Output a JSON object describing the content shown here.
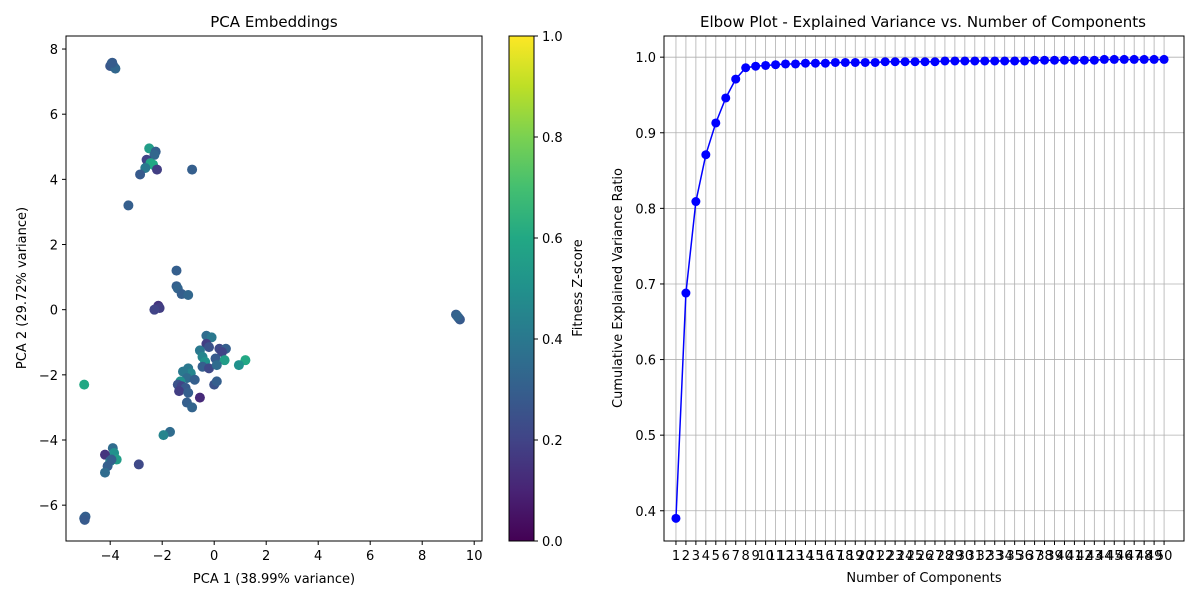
{
  "chart_data": [
    {
      "type": "scatter",
      "title": "PCA Embeddings",
      "xlabel": "PCA 1 (38.99% variance)",
      "ylabel": "PCA 2 (29.72% variance)",
      "xlim": [
        -5.7,
        10.3
      ],
      "ylim": [
        -7.1,
        8.4
      ],
      "xticks": [
        -4,
        -2,
        0,
        2,
        4,
        6,
        8,
        10
      ],
      "yticks": [
        -6,
        -4,
        -2,
        0,
        2,
        4,
        6,
        8
      ],
      "grid": false,
      "colorbar": {
        "label": "Fitness Z-score",
        "range": [
          0,
          1
        ],
        "ticks": [
          0.0,
          0.2,
          0.4,
          0.6,
          0.8,
          1.0
        ],
        "tick_labels": [
          "0.0",
          "0.2",
          "0.4",
          "0.6",
          "0.8",
          "1.0"
        ],
        "colormap": "viridis"
      },
      "points": [
        {
          "x": -3.95,
          "y": 7.55,
          "c": 0.3
        },
        {
          "x": -3.9,
          "y": 7.5,
          "c": 0.28
        },
        {
          "x": -3.85,
          "y": 7.45,
          "c": 0.32
        },
        {
          "x": -4.0,
          "y": 7.48,
          "c": 0.27
        },
        {
          "x": -3.8,
          "y": 7.4,
          "c": 0.33
        },
        {
          "x": -3.92,
          "y": 7.58,
          "c": 0.29
        },
        {
          "x": -2.5,
          "y": 4.95,
          "c": 0.55
        },
        {
          "x": -2.25,
          "y": 4.85,
          "c": 0.3
        },
        {
          "x": -2.3,
          "y": 4.75,
          "c": 0.33
        },
        {
          "x": -2.6,
          "y": 4.6,
          "c": 0.2
        },
        {
          "x": -2.45,
          "y": 4.5,
          "c": 0.58
        },
        {
          "x": -2.35,
          "y": 4.45,
          "c": 0.6
        },
        {
          "x": -2.65,
          "y": 4.35,
          "c": 0.4
        },
        {
          "x": -2.2,
          "y": 4.3,
          "c": 0.18
        },
        {
          "x": -2.85,
          "y": 4.15,
          "c": 0.28
        },
        {
          "x": -0.85,
          "y": 4.3,
          "c": 0.3
        },
        {
          "x": -3.3,
          "y": 3.2,
          "c": 0.3
        },
        {
          "x": -1.45,
          "y": 1.2,
          "c": 0.3
        },
        {
          "x": -1.45,
          "y": 0.72,
          "c": 0.3
        },
        {
          "x": -1.4,
          "y": 0.65,
          "c": 0.32
        },
        {
          "x": -1.25,
          "y": 0.48,
          "c": 0.3
        },
        {
          "x": -1.0,
          "y": 0.45,
          "c": 0.33
        },
        {
          "x": -2.15,
          "y": 0.12,
          "c": 0.15
        },
        {
          "x": -2.1,
          "y": 0.05,
          "c": 0.18
        },
        {
          "x": -2.3,
          "y": 0.0,
          "c": 0.2
        },
        {
          "x": -0.3,
          "y": -0.8,
          "c": 0.35
        },
        {
          "x": -0.1,
          "y": -0.85,
          "c": 0.4
        },
        {
          "x": -0.3,
          "y": -1.05,
          "c": 0.18
        },
        {
          "x": -0.2,
          "y": -1.15,
          "c": 0.25
        },
        {
          "x": 0.2,
          "y": -1.2,
          "c": 0.22
        },
        {
          "x": 0.45,
          "y": -1.2,
          "c": 0.3
        },
        {
          "x": 0.3,
          "y": -1.3,
          "c": 0.2
        },
        {
          "x": -0.55,
          "y": -1.25,
          "c": 0.4
        },
        {
          "x": -0.45,
          "y": -1.45,
          "c": 0.45
        },
        {
          "x": 0.05,
          "y": -1.5,
          "c": 0.28
        },
        {
          "x": 0.4,
          "y": -1.55,
          "c": 0.55
        },
        {
          "x": -0.35,
          "y": -1.6,
          "c": 0.5
        },
        {
          "x": -0.45,
          "y": -1.75,
          "c": 0.3
        },
        {
          "x": -0.2,
          "y": -1.8,
          "c": 0.22
        },
        {
          "x": 0.1,
          "y": -1.7,
          "c": 0.35
        },
        {
          "x": 1.2,
          "y": -1.55,
          "c": 0.6
        },
        {
          "x": 0.95,
          "y": -1.7,
          "c": 0.5
        },
        {
          "x": -1.0,
          "y": -1.8,
          "c": 0.4
        },
        {
          "x": -0.9,
          "y": -1.95,
          "c": 0.45
        },
        {
          "x": -1.2,
          "y": -1.9,
          "c": 0.4
        },
        {
          "x": -1.05,
          "y": -2.1,
          "c": 0.35
        },
        {
          "x": -0.75,
          "y": -2.15,
          "c": 0.3
        },
        {
          "x": -1.3,
          "y": -2.2,
          "c": 0.5
        },
        {
          "x": -1.4,
          "y": -2.3,
          "c": 0.25
        },
        {
          "x": -1.25,
          "y": -2.35,
          "c": 0.2
        },
        {
          "x": -1.1,
          "y": -2.4,
          "c": 0.28
        },
        {
          "x": 0.0,
          "y": -2.3,
          "c": 0.25
        },
        {
          "x": 0.1,
          "y": -2.2,
          "c": 0.3
        },
        {
          "x": -1.35,
          "y": -2.5,
          "c": 0.18
        },
        {
          "x": -1.0,
          "y": -2.55,
          "c": 0.3
        },
        {
          "x": -0.55,
          "y": -2.7,
          "c": 0.12
        },
        {
          "x": -1.05,
          "y": -2.85,
          "c": 0.3
        },
        {
          "x": -0.85,
          "y": -3.0,
          "c": 0.32
        },
        {
          "x": -1.7,
          "y": -3.75,
          "c": 0.35
        },
        {
          "x": -1.95,
          "y": -3.85,
          "c": 0.45
        },
        {
          "x": -5.0,
          "y": -2.3,
          "c": 0.6
        },
        {
          "x": -3.9,
          "y": -4.25,
          "c": 0.35
        },
        {
          "x": -3.85,
          "y": -4.4,
          "c": 0.5
        },
        {
          "x": -4.2,
          "y": -4.45,
          "c": 0.15
        },
        {
          "x": -3.75,
          "y": -4.6,
          "c": 0.55
        },
        {
          "x": -4.0,
          "y": -4.65,
          "c": 0.45
        },
        {
          "x": -3.95,
          "y": -4.6,
          "c": 0.3
        },
        {
          "x": -4.1,
          "y": -4.8,
          "c": 0.3
        },
        {
          "x": -4.2,
          "y": -5.0,
          "c": 0.35
        },
        {
          "x": -2.9,
          "y": -4.75,
          "c": 0.22
        },
        {
          "x": -4.95,
          "y": -6.35,
          "c": 0.3
        },
        {
          "x": -5.0,
          "y": -6.4,
          "c": 0.3
        },
        {
          "x": -4.98,
          "y": -6.45,
          "c": 0.28
        },
        {
          "x": 9.3,
          "y": -0.15,
          "c": 0.3
        },
        {
          "x": 9.4,
          "y": -0.25,
          "c": 0.3
        },
        {
          "x": 9.45,
          "y": -0.3,
          "c": 0.28
        },
        {
          "x": 9.35,
          "y": -0.2,
          "c": 0.32
        }
      ]
    },
    {
      "type": "line",
      "title": "Elbow Plot - Explained Variance vs. Number of Components",
      "xlabel": "Number of Components",
      "ylabel": "Cumulative Explained Variance Ratio",
      "xlim": [
        -0.2,
        52.0
      ],
      "ylim": [
        0.36,
        1.028
      ],
      "yticks": [
        0.4,
        0.5,
        0.6,
        0.7,
        0.8,
        0.9,
        1.0
      ],
      "ytick_labels": [
        "0.4",
        "0.5",
        "0.6",
        "0.7",
        "0.8",
        "0.9",
        "1.0"
      ],
      "grid": true,
      "x": [
        1,
        2,
        3,
        4,
        5,
        6,
        7,
        8,
        9,
        10,
        11,
        12,
        13,
        14,
        15,
        16,
        17,
        18,
        19,
        20,
        21,
        22,
        23,
        24,
        25,
        26,
        27,
        28,
        29,
        30,
        31,
        32,
        33,
        34,
        35,
        36,
        37,
        38,
        39,
        40,
        41,
        42,
        43,
        44,
        45,
        46,
        47,
        48,
        49,
        50
      ],
      "xtick_labels": [
        "1",
        "2",
        "3",
        "4",
        "5",
        "6",
        "7",
        "8",
        "9",
        "10",
        "11",
        "12",
        "13",
        "14",
        "15",
        "16",
        "17",
        "18",
        "19",
        "20",
        "21",
        "22",
        "23",
        "24",
        "25",
        "26",
        "27",
        "28",
        "29",
        "30",
        "31",
        "32",
        "33",
        "34",
        "35",
        "36",
        "37",
        "38",
        "39",
        "40",
        "41",
        "42",
        "43",
        "44",
        "45",
        "46",
        "47",
        "48",
        "49",
        "50"
      ],
      "series": [
        {
          "color": "#0000ff",
          "values": [
            0.39,
            0.688,
            0.809,
            0.871,
            0.913,
            0.946,
            0.971,
            0.986,
            0.988,
            0.989,
            0.99,
            0.991,
            0.991,
            0.992,
            0.992,
            0.992,
            0.993,
            0.993,
            0.993,
            0.993,
            0.993,
            0.994,
            0.994,
            0.994,
            0.994,
            0.994,
            0.994,
            0.995,
            0.995,
            0.995,
            0.995,
            0.995,
            0.995,
            0.995,
            0.995,
            0.995,
            0.996,
            0.996,
            0.996,
            0.996,
            0.996,
            0.996,
            0.996,
            0.997,
            0.997,
            0.997,
            0.997,
            0.997,
            0.997,
            0.997
          ]
        }
      ]
    }
  ]
}
